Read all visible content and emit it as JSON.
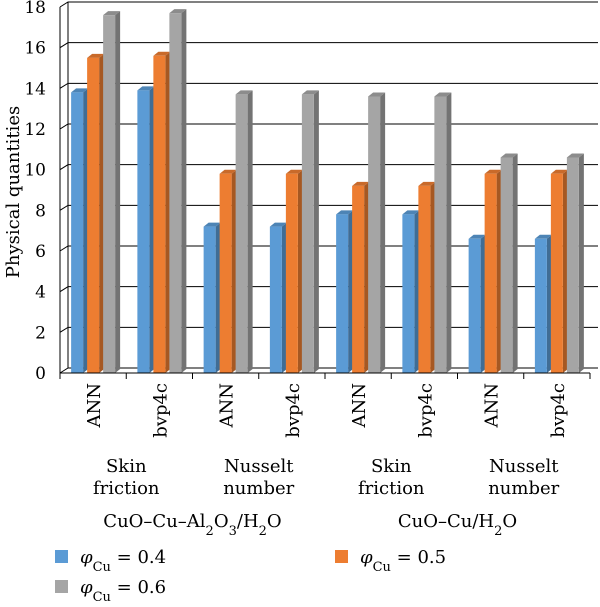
{
  "chart_data": {
    "type": "bar",
    "style": "3d-clustered-column",
    "ylabel": "Physical quantities",
    "ylim": [
      0,
      18
    ],
    "yticks": [
      0,
      2,
      4,
      6,
      8,
      10,
      12,
      14,
      16,
      18
    ],
    "grid": true,
    "categories": [
      "ANN",
      "bvp4c",
      "ANN",
      "bvp4c",
      "ANN",
      "bvp4c",
      "ANN",
      "bvp4c"
    ],
    "groups_level1": [
      {
        "line1": "Skin",
        "line2": "friction"
      },
      {
        "line1": "Nusselt",
        "line2": "number"
      },
      {
        "line1": "Skin",
        "line2": "friction"
      },
      {
        "line1": "Nusselt",
        "line2": "number"
      }
    ],
    "groups_level2": [
      {
        "label": "CuO–Cu–Al2O3/H2O"
      },
      {
        "label": "CuO–Cu/H2O"
      }
    ],
    "series": [
      {
        "name": "φCu = 0.4",
        "color": "#5b9bd5",
        "values": [
          13.8,
          13.9,
          7.2,
          7.2,
          7.8,
          7.8,
          6.6,
          6.6
        ]
      },
      {
        "name": "φCu = 0.5",
        "color": "#ed7d31",
        "values": [
          15.5,
          15.6,
          9.8,
          9.8,
          9.2,
          9.2,
          9.8,
          9.8
        ]
      },
      {
        "name": "φCu = 0.6",
        "color": "#a5a5a5",
        "values": [
          17.6,
          17.7,
          13.7,
          13.7,
          13.6,
          13.6,
          10.6,
          10.6
        ]
      }
    ],
    "legend": {
      "position": "bottom"
    }
  }
}
